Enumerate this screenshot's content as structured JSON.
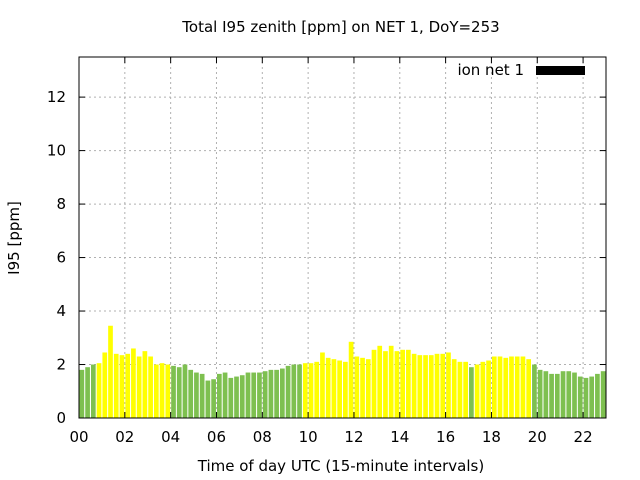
{
  "chart_data": {
    "type": "bar",
    "title": "Total I95 zenith [ppm] on NET 1, DoY=253",
    "xlabel": "Time of day UTC (15-minute intervals)",
    "ylabel": "I95 [ppm]",
    "xlim": [
      0,
      23
    ],
    "ylim": [
      0,
      13.5
    ],
    "xticks": [
      "00",
      "02",
      "04",
      "06",
      "08",
      "10",
      "12",
      "14",
      "16",
      "18",
      "20",
      "22"
    ],
    "yticks": [
      "0",
      "2",
      "4",
      "6",
      "8",
      "10",
      "12"
    ],
    "grid": true,
    "legend": {
      "position": "top-right",
      "entries": [
        {
          "label": "ion net 1",
          "color": "#000000"
        }
      ]
    },
    "colors": {
      "green": "#7ec050",
      "yellow": "#ffff00",
      "legend_swatch": "#000000"
    },
    "series": [
      {
        "name": "ion net 1",
        "x_hours": [
          0.0,
          0.25,
          0.5,
          0.75,
          1.0,
          1.25,
          1.5,
          1.75,
          2.0,
          2.25,
          2.5,
          2.75,
          3.0,
          3.25,
          3.5,
          3.75,
          4.0,
          4.25,
          4.5,
          4.75,
          5.0,
          5.25,
          5.5,
          5.75,
          6.0,
          6.25,
          6.5,
          6.75,
          7.0,
          7.25,
          7.5,
          7.75,
          8.0,
          8.25,
          8.5,
          8.75,
          9.0,
          9.25,
          9.5,
          9.75,
          10.0,
          10.25,
          10.5,
          10.75,
          11.0,
          11.25,
          11.5,
          11.75,
          12.0,
          12.25,
          12.5,
          12.75,
          13.0,
          13.25,
          13.5,
          13.75,
          14.0,
          14.25,
          14.5,
          14.75,
          15.0,
          15.25,
          15.5,
          15.75,
          16.0,
          16.25,
          16.5,
          16.75,
          17.0,
          17.25,
          17.5,
          17.75,
          18.0,
          18.25,
          18.5,
          18.75,
          19.0,
          19.25,
          19.5,
          19.75,
          20.0,
          20.25,
          20.5,
          20.75,
          21.0,
          21.25,
          21.5,
          21.75,
          22.0,
          22.25,
          22.5,
          22.75
        ],
        "values": [
          1.8,
          1.9,
          2.0,
          2.05,
          2.45,
          3.45,
          2.4,
          2.35,
          2.4,
          2.6,
          2.3,
          2.5,
          2.3,
          2.0,
          2.05,
          2.0,
          1.95,
          1.9,
          2.0,
          1.8,
          1.7,
          1.65,
          1.4,
          1.45,
          1.65,
          1.7,
          1.5,
          1.55,
          1.6,
          1.7,
          1.7,
          1.7,
          1.75,
          1.8,
          1.8,
          1.85,
          1.95,
          2.0,
          2.0,
          2.05,
          2.05,
          2.1,
          2.45,
          2.25,
          2.2,
          2.15,
          2.1,
          2.85,
          2.3,
          2.25,
          2.2,
          2.55,
          2.7,
          2.5,
          2.7,
          2.5,
          2.55,
          2.55,
          2.4,
          2.35,
          2.35,
          2.35,
          2.4,
          2.4,
          2.45,
          2.2,
          2.1,
          2.1,
          1.9,
          2.0,
          2.1,
          2.15,
          2.3,
          2.3,
          2.25,
          2.3,
          2.3,
          2.3,
          2.2,
          2.0,
          1.8,
          1.75,
          1.65,
          1.65,
          1.75,
          1.75,
          1.7,
          1.55,
          1.5,
          1.55,
          1.65,
          1.75
        ],
        "colors": [
          "green",
          "green",
          "green",
          "yellow",
          "yellow",
          "yellow",
          "yellow",
          "yellow",
          "yellow",
          "yellow",
          "yellow",
          "yellow",
          "yellow",
          "yellow",
          "yellow",
          "yellow",
          "green",
          "green",
          "green",
          "green",
          "green",
          "green",
          "green",
          "green",
          "green",
          "green",
          "green",
          "green",
          "green",
          "green",
          "green",
          "green",
          "green",
          "green",
          "green",
          "green",
          "green",
          "green",
          "green",
          "yellow",
          "yellow",
          "yellow",
          "yellow",
          "yellow",
          "yellow",
          "yellow",
          "yellow",
          "yellow",
          "yellow",
          "yellow",
          "yellow",
          "yellow",
          "yellow",
          "yellow",
          "yellow",
          "yellow",
          "yellow",
          "yellow",
          "yellow",
          "yellow",
          "yellow",
          "yellow",
          "yellow",
          "yellow",
          "yellow",
          "yellow",
          "yellow",
          "yellow",
          "green",
          "yellow",
          "yellow",
          "yellow",
          "yellow",
          "yellow",
          "yellow",
          "yellow",
          "yellow",
          "yellow",
          "yellow",
          "green",
          "green",
          "green",
          "green",
          "green",
          "green",
          "green",
          "green",
          "green",
          "green",
          "green",
          "green",
          "green"
        ]
      }
    ]
  }
}
